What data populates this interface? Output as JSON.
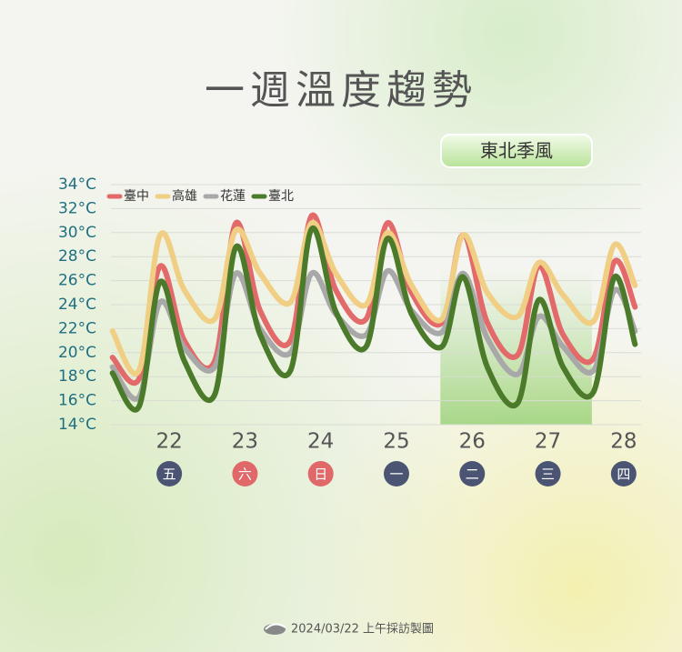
{
  "chart_data": {
    "type": "line",
    "title": "一週溫度趨勢",
    "annotation": "東北季風",
    "shade_x": [
      25.58,
      27.58
    ],
    "footer": "2024/03/22 上午採訪製圖",
    "x": [
      21.25,
      21.6,
      21.88,
      22.2,
      22.6,
      22.88,
      23.2,
      23.6,
      23.88,
      24.2,
      24.6,
      24.88,
      25.2,
      25.6,
      25.88,
      26.2,
      26.6,
      26.88,
      27.2,
      27.6,
      27.88,
      28.15
    ],
    "series": [
      {
        "name": "臺中",
        "color": "#e26a6a",
        "values": [
          19.6,
          17.8,
          27.2,
          21.0,
          19.3,
          30.8,
          23.5,
          21.0,
          31.4,
          25.2,
          22.8,
          30.8,
          25.0,
          22.5,
          29.8,
          22.5,
          19.8,
          27.2,
          21.5,
          19.5,
          27.6,
          23.8
        ]
      },
      {
        "name": "高雄",
        "color": "#f0cf84",
        "values": [
          21.8,
          18.5,
          29.8,
          25.2,
          22.8,
          30.2,
          26.6,
          24.2,
          30.8,
          26.6,
          24.0,
          30.0,
          25.6,
          22.8,
          29.8,
          25.0,
          23.0,
          27.5,
          24.8,
          22.6,
          29.0,
          25.6
        ]
      },
      {
        "name": "花蓮",
        "color": "#a8a8a8",
        "values": [
          18.8,
          16.3,
          24.2,
          20.4,
          18.8,
          26.6,
          22.0,
          20.0,
          26.6,
          23.2,
          21.5,
          26.8,
          23.5,
          21.7,
          26.6,
          21.2,
          18.2,
          23.0,
          20.5,
          18.5,
          25.2,
          21.8
        ]
      },
      {
        "name": "臺北",
        "color": "#4a7a2a",
        "values": [
          18.3,
          15.5,
          25.9,
          19.3,
          16.5,
          28.8,
          21.5,
          18.5,
          30.3,
          23.4,
          20.5,
          29.5,
          23.2,
          20.5,
          26.3,
          18.8,
          15.8,
          24.4,
          18.8,
          16.7,
          26.3,
          20.7
        ]
      }
    ],
    "xlim": [
      21.23,
      28.23
    ],
    "xticks": [
      22,
      23,
      24,
      25,
      26,
      27,
      28
    ],
    "x_sublabels": [
      "五",
      "六",
      "日",
      "一",
      "二",
      "三",
      "四"
    ],
    "x_sublabel_colors": [
      "#4b5573",
      "#e06868",
      "#e06868",
      "#4b5573",
      "#4b5573",
      "#4b5573",
      "#4b5573"
    ],
    "ylim": [
      14,
      34
    ],
    "yticks": [
      {
        "value": 14,
        "label": "14°C"
      },
      {
        "value": 16,
        "label": "16°C"
      },
      {
        "value": 18,
        "label": "18°C"
      },
      {
        "value": 20,
        "label": "20°C"
      },
      {
        "value": 22,
        "label": "22°C"
      },
      {
        "value": 24,
        "label": "24°C"
      },
      {
        "value": 26,
        "label": "26°C"
      },
      {
        "value": 28,
        "label": "28°C"
      },
      {
        "value": 30,
        "label": "30°C"
      },
      {
        "value": 32,
        "label": "32°C"
      },
      {
        "value": 34,
        "label": "34°C"
      }
    ],
    "grid": true,
    "legend": "upper left"
  }
}
